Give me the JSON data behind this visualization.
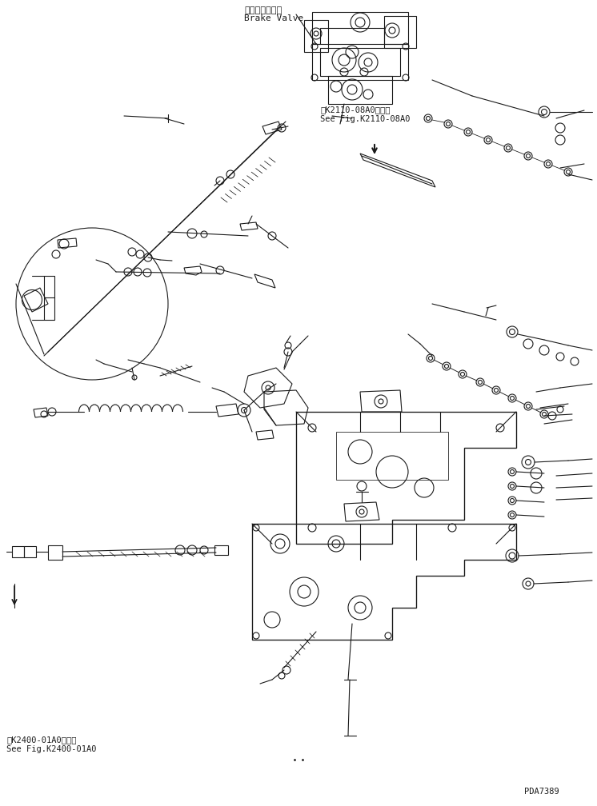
{
  "bg_color": "#ffffff",
  "fig_width": 7.46,
  "fig_height": 10.08,
  "dpi": 100,
  "title_jp": "ブレーキバルブ",
  "title_en": "Brake Valve",
  "ref1_jp": "第K2110-08A0図参照",
  "ref1_en": "See Fig.K2110-08A0",
  "ref2_jp": "第K2400-01A0図参照",
  "ref2_en": "See Fig.K2400-01A0",
  "part_number": "PDA7389",
  "line_color": "#1a1a1a",
  "line_width": 0.8
}
